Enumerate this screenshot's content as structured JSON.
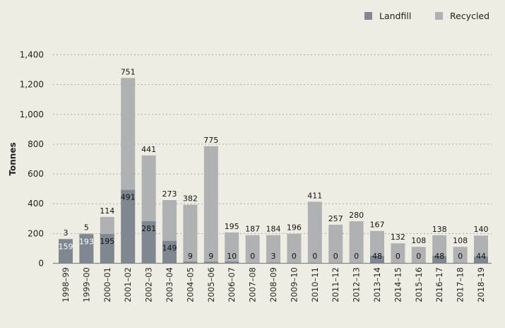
{
  "chart_data": {
    "type": "bar",
    "stacked": true,
    "title": "",
    "xlabel": "",
    "ylabel": "Tonnes",
    "ylim": [
      0,
      1400
    ],
    "yticks": [
      0,
      200,
      400,
      600,
      800,
      1000,
      1200,
      1400
    ],
    "ytick_labels": [
      "0",
      "200",
      "400",
      "600",
      "800",
      "1,000",
      "1,200",
      "1,400"
    ],
    "grid": "horizontal dotted",
    "legend_position": "top-right",
    "categories": [
      "1998–99",
      "1999–00",
      "2000–01",
      "2001–02",
      "2002–03",
      "2003–04",
      "2004–05",
      "2005–06",
      "2006–07",
      "2007–08",
      "2008–09",
      "2009–10",
      "2010–11",
      "2011–12",
      "2012–13",
      "2013–14",
      "2014–15",
      "2015–16",
      "2016–17",
      "2017–18",
      "2018–19"
    ],
    "series": [
      {
        "name": "Landfill",
        "color": "#7f8890",
        "values": [
          159,
          193,
          195,
          491,
          281,
          149,
          9,
          9,
          10,
          0,
          3,
          0,
          0,
          0,
          0,
          48,
          0,
          0,
          48,
          0,
          44
        ]
      },
      {
        "name": "Recycled",
        "color": "#b0b1b3",
        "values": [
          3,
          5,
          114,
          751,
          441,
          273,
          382,
          775,
          195,
          187,
          184,
          196,
          411,
          257,
          280,
          167,
          132,
          108,
          138,
          108,
          140
        ]
      }
    ]
  }
}
